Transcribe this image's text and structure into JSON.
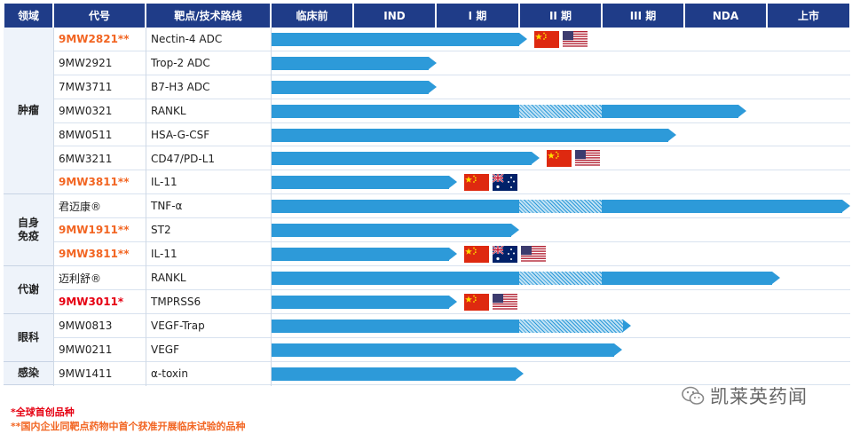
{
  "header": [
    "领域",
    "代号",
    "靶点/技术路线",
    "临床前",
    "IND",
    "I 期",
    "II 期",
    "III 期",
    "NDA",
    "上市"
  ],
  "stages": [
    "临床前",
    "IND",
    "I 期",
    "II 期",
    "III 期",
    "NDA",
    "上市"
  ],
  "chart_data": {
    "type": "table",
    "stage_scale": "0=临床前 start, 1=IND start, 2=I 期 start, 3=II 期 start, 4=III 期 start, 5=NDA start, 6=上市 start, 7=上市 end",
    "domains": [
      {
        "name": "肿瘤",
        "rows": [
          0,
          6
        ]
      },
      {
        "name": "自身免疫",
        "rows": [
          7,
          9
        ]
      },
      {
        "name": "代谢",
        "rows": [
          10,
          11
        ]
      },
      {
        "name": "眼科",
        "rows": [
          12,
          13
        ]
      },
      {
        "name": "感染",
        "rows": [
          14,
          14
        ]
      }
    ],
    "rows": [
      {
        "code": "9MW2821**",
        "style": "orange",
        "target": "Nectin-4 ADC",
        "solid_end": 3.1,
        "hatch": null,
        "flags": [
          "cn",
          "us"
        ]
      },
      {
        "code": "9MW2921",
        "style": "normal",
        "target": "Trop-2 ADC",
        "solid_end": 2.0,
        "hatch": null,
        "flags": []
      },
      {
        "code": "7MW3711",
        "style": "normal",
        "target": "B7-H3 ADC",
        "solid_end": 2.0,
        "hatch": null,
        "flags": []
      },
      {
        "code": "9MW0321",
        "style": "normal",
        "target": "RANKL",
        "solid_end": 5.75,
        "hatch": [
          3.0,
          4.0
        ],
        "flags": []
      },
      {
        "code": "8MW0511",
        "style": "normal",
        "target": "HSA-G-CSF",
        "solid_end": 4.9,
        "hatch": null,
        "flags": []
      },
      {
        "code": "6MW3211",
        "style": "normal",
        "target": "CD47/PD-L1",
        "solid_end": 3.25,
        "hatch": null,
        "flags": [
          "cn",
          "us"
        ]
      },
      {
        "code": "9MW3811**",
        "style": "orange",
        "target": "IL-11",
        "solid_end": 2.25,
        "hatch": null,
        "flags": [
          "cn",
          "au"
        ]
      },
      {
        "code": "君迈康®",
        "style": "normal",
        "target": "TNF-α",
        "solid_end": 7.0,
        "hatch": [
          3.0,
          4.0
        ],
        "flags": []
      },
      {
        "code": "9MW1911**",
        "style": "orange",
        "target": "ST2",
        "solid_end": 3.0,
        "hatch": null,
        "flags": []
      },
      {
        "code": "9MW3811**",
        "style": "orange",
        "target": "IL-11",
        "solid_end": 2.25,
        "hatch": null,
        "flags": [
          "cn",
          "au",
          "us"
        ]
      },
      {
        "code": "迈利舒®",
        "style": "normal",
        "target": "RANKL",
        "solid_end": 6.15,
        "hatch": [
          3.0,
          4.0
        ],
        "flags": []
      },
      {
        "code": "9MW3011*",
        "style": "red",
        "target": "TMPRSS6",
        "solid_end": 2.25,
        "hatch": null,
        "flags": [
          "cn",
          "us"
        ]
      },
      {
        "code": "9MW0813",
        "style": "normal",
        "target": "VEGF-Trap",
        "solid_end": 4.35,
        "hatch": [
          3.0,
          4.35
        ],
        "flags": []
      },
      {
        "code": "9MW0211",
        "style": "normal",
        "target": "VEGF",
        "solid_end": 4.25,
        "hatch": null,
        "flags": []
      },
      {
        "code": "9MW1411",
        "style": "normal",
        "target": "α-toxin",
        "solid_end": 3.05,
        "hatch": null,
        "flags": []
      }
    ]
  },
  "footnotes": {
    "first_in_class": "*全球首创品种",
    "domestic_first": "**国内企业同靶点药物中首个获准开展临床试验的品种"
  },
  "watermark": "凯莱英药闻",
  "colors": {
    "header": "#1f3c88",
    "bar": "#2d9ad9",
    "orange": "#f26522",
    "red": "#e60012"
  }
}
